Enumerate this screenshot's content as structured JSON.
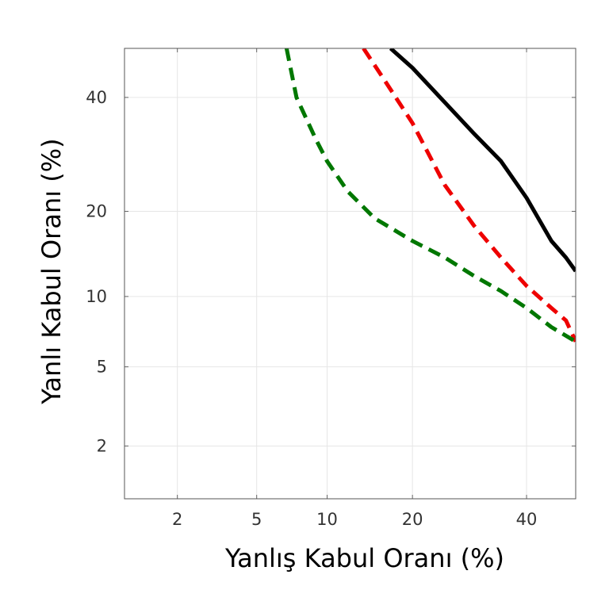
{
  "chart_data": {
    "type": "line",
    "xlabel": "Yanlış Kabul Oranı (%)",
    "ylabel": "Yanlı Kabul Oranı (%)",
    "x_scale": "probit",
    "y_scale": "probit",
    "xlim": [
      1,
      50
    ],
    "ylim": [
      1,
      50
    ],
    "x_ticks": [
      2,
      5,
      10,
      20,
      40
    ],
    "y_ticks": [
      2,
      5,
      10,
      20,
      40
    ],
    "grid": true,
    "series": [
      {
        "color": "#000000",
        "style": "solid",
        "points": [
          [
            17,
            50
          ],
          [
            20,
            46
          ],
          [
            25,
            39
          ],
          [
            30,
            33
          ],
          [
            35,
            28
          ],
          [
            40,
            22
          ],
          [
            45,
            16
          ],
          [
            48,
            14
          ],
          [
            50,
            12.5
          ]
        ]
      },
      {
        "color": "#ee0000",
        "style": "dashed",
        "points": [
          [
            13.7,
            50
          ],
          [
            16,
            44
          ],
          [
            20,
            35
          ],
          [
            25,
            24
          ],
          [
            30,
            18
          ],
          [
            35,
            14
          ],
          [
            40,
            11
          ],
          [
            45,
            9
          ],
          [
            48,
            8
          ],
          [
            50,
            6.5
          ]
        ]
      },
      {
        "color": "#007700",
        "style": "dashed",
        "points": [
          [
            6.8,
            50
          ],
          [
            7.5,
            40
          ],
          [
            9,
            32
          ],
          [
            10,
            28
          ],
          [
            12,
            23
          ],
          [
            15,
            19
          ],
          [
            20,
            16
          ],
          [
            25,
            14
          ],
          [
            30,
            12
          ],
          [
            35,
            10.5
          ],
          [
            40,
            9
          ],
          [
            45,
            7.5
          ],
          [
            50,
            6.5
          ]
        ]
      }
    ]
  }
}
